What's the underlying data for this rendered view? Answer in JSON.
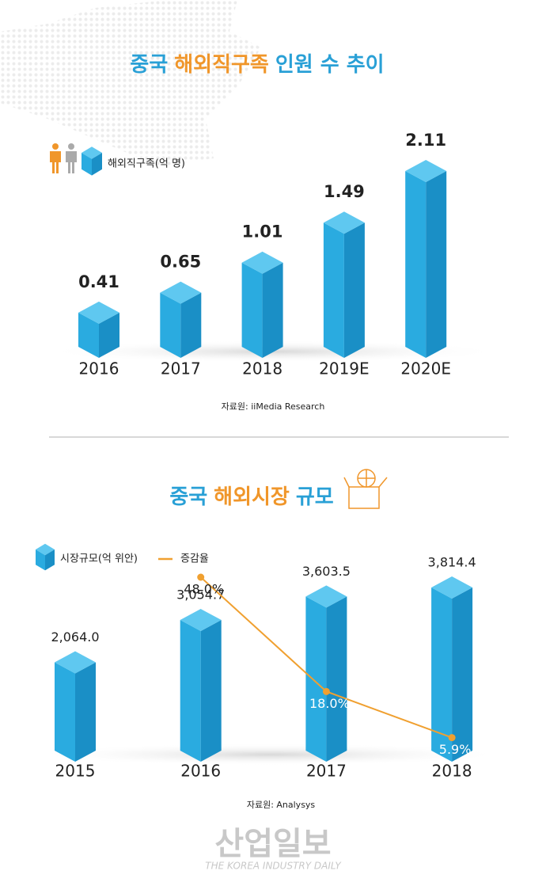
{
  "chart_data": [
    {
      "type": "bar3d",
      "title": [
        "중국",
        "해외직구족",
        "인원 수 추이"
      ],
      "categories": [
        "2016",
        "2017",
        "2018",
        "2019E",
        "2020E"
      ],
      "series": [
        {
          "name": "해외직구족(억 명)",
          "color": "#29a9dd",
          "values": [
            0.41,
            0.65,
            1.01,
            1.49,
            2.11
          ]
        }
      ],
      "source": "자료원: iiMedia Research"
    },
    {
      "type": "bar3d-line",
      "title": [
        "중국",
        "해외시장",
        "규모"
      ],
      "categories": [
        "2015",
        "2016",
        "2017",
        "2018"
      ],
      "series": [
        {
          "name": "시장규모(억 위안)",
          "color": "#29a9dd",
          "values": [
            2064.0,
            3054.7,
            3603.5,
            3814.4
          ],
          "value_labels": [
            "2,064.0",
            "3,054.7",
            "3,603.5",
            "3,814.4"
          ]
        },
        {
          "name": "증감율",
          "color": "#f0a030",
          "axis": "y2",
          "values": [
            null,
            48.0,
            18.0,
            5.9
          ],
          "value_labels": [
            null,
            "48.0%",
            "18.0%",
            "5.9%"
          ]
        }
      ],
      "source": "자료원: Analysys"
    }
  ],
  "watermark": {
    "name": "산업일보",
    "subtitle": "THE KOREA INDUSTRY DAILY"
  }
}
